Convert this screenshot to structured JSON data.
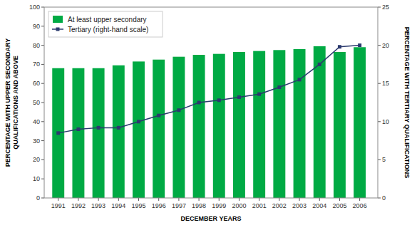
{
  "chart_data": {
    "type": "bar",
    "x": [
      1991,
      1992,
      1993,
      1994,
      1995,
      1996,
      1997,
      1998,
      1999,
      2000,
      2001,
      2002,
      2003,
      2004,
      2005,
      2006
    ],
    "xlabel": "DECEMBER YEARS",
    "ylabel": "PERCENTAGE WITH UPPER SECONDARY\nQUALIFICATIONS AND ABOVE",
    "y2label": "PERCENTAGE WITH TERTIARY QUALIFICATIONS",
    "xlim": [
      1990.3,
      2006.9
    ],
    "xticks": [
      1991,
      1992,
      1993,
      1994,
      1995,
      1996,
      1997,
      1998,
      1999,
      2000,
      2001,
      2002,
      2003,
      2004,
      2005,
      2006
    ],
    "ylim": [
      0,
      100
    ],
    "yticks": [
      0,
      10,
      20,
      30,
      40,
      50,
      60,
      70,
      80,
      90,
      100
    ],
    "y2lim": [
      0,
      25
    ],
    "y2ticks": [
      0,
      5,
      10,
      15,
      20,
      25
    ],
    "series": [
      {
        "name": "At least upper secondary",
        "type": "bar",
        "color": "#00aa44",
        "values": [
          68,
          68,
          68,
          69.5,
          71.5,
          72.5,
          74,
          75,
          75.5,
          76.5,
          77,
          77.5,
          78,
          79.5,
          76.5,
          79
        ]
      },
      {
        "name": "Tertiary (right-hand scale)",
        "type": "line",
        "color": "#2b3a6e",
        "marker": "square",
        "axis": "y2",
        "values": [
          8.5,
          9.0,
          9.2,
          9.2,
          10.0,
          10.8,
          11.5,
          12.5,
          12.8,
          13.2,
          13.6,
          14.5,
          15.5,
          17.5,
          19.8,
          20.0
        ]
      }
    ],
    "legend": "upper left",
    "grid": false
  }
}
